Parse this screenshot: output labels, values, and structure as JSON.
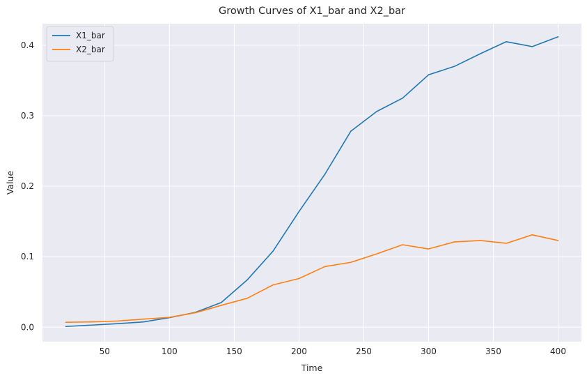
{
  "chart_data": {
    "type": "line",
    "title": "Growth Curves of X1_bar and X2_bar",
    "xlabel": "Time",
    "ylabel": "Value",
    "xlim": [
      2,
      418
    ],
    "ylim": [
      -0.0205,
      0.4305
    ],
    "xticks": [
      50,
      100,
      150,
      200,
      250,
      300,
      350,
      400
    ],
    "xtick_labels": [
      "50",
      "100",
      "150",
      "200",
      "250",
      "300",
      "350",
      "400"
    ],
    "yticks": [
      0.0,
      0.1,
      0.2,
      0.3,
      0.4
    ],
    "ytick_labels": [
      "0.0",
      "0.1",
      "0.2",
      "0.3",
      "0.4"
    ],
    "grid": true,
    "legend_position": "top-left",
    "background_color": "#eaeaf2",
    "grid_color": "#ffffff",
    "x": [
      20,
      40,
      60,
      80,
      100,
      120,
      140,
      160,
      180,
      200,
      220,
      240,
      260,
      280,
      300,
      320,
      340,
      360,
      380,
      400
    ],
    "series": [
      {
        "name": "X1_bar",
        "color": "#1f77b4",
        "values": [
          0.001,
          0.003,
          0.005,
          0.0075,
          0.0135,
          0.021,
          0.035,
          0.067,
          0.108,
          0.164,
          0.217,
          0.278,
          0.306,
          0.325,
          0.358,
          0.37,
          0.388,
          0.405,
          0.398,
          0.412
        ]
      },
      {
        "name": "X2_bar",
        "color": "#ff7f0e",
        "values": [
          0.007,
          0.0075,
          0.0088,
          0.0115,
          0.014,
          0.0205,
          0.031,
          0.041,
          0.06,
          0.069,
          0.086,
          0.092,
          0.104,
          0.117,
          0.111,
          0.121,
          0.123,
          0.119,
          0.131,
          0.123
        ]
      }
    ]
  }
}
